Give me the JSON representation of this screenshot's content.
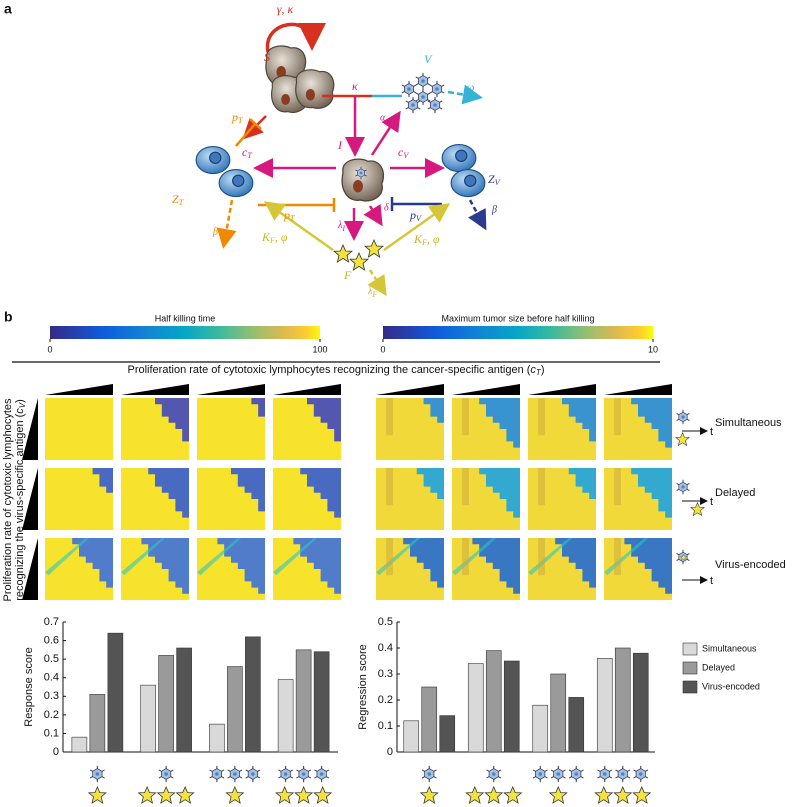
{
  "panel_labels": [
    "a",
    "b"
  ],
  "diagram": {
    "S": "S",
    "self": "γ, κ",
    "V": "V",
    "omega": "ω",
    "kappa": "κ",
    "alpha": "α",
    "I": "I",
    "cT": {
      "text": "c",
      "sub": "T"
    },
    "cV": {
      "text": "c",
      "sub": "V"
    },
    "pT_top": {
      "text": "p",
      "sub": "T"
    },
    "pT": {
      "text": "p",
      "sub": "T"
    },
    "pV": {
      "text": "p",
      "sub": "V"
    },
    "ZT": {
      "text": "Z",
      "sub": "T"
    },
    "ZV": {
      "text": "Z",
      "sub": "V"
    },
    "beta_T": "β",
    "beta_V": "β",
    "delta": "δ",
    "lambdaI": {
      "text": "λ",
      "sub": "I"
    },
    "KF_left": {
      "text": "K",
      "sub": "F",
      "suffix": ", φ"
    },
    "KF_right": {
      "text": "K",
      "sub": "F",
      "suffix": ", φ"
    },
    "F": "F",
    "lambdaF": {
      "text": "λ",
      "sub": "F"
    }
  },
  "colorbars": [
    {
      "title": "Half killing time",
      "lim": [
        0,
        100
      ],
      "ticks": [
        0,
        100
      ]
    },
    {
      "title": "Maximum tumor size before half killing",
      "lim": [
        0,
        10
      ],
      "ticks": [
        0,
        10
      ]
    }
  ],
  "heatmap_labels": {
    "x_title": {
      "text": "Proliferation rate of cytotoxic lymphocytes recognizing the cancer-specific antigen (",
      "symbol": "c",
      "sub": "T",
      "close": ")"
    },
    "y_title": {
      "line1": "Proliferation rate of cytotoxic lymphocytes",
      "line2": "recognizing the virus-specific antigen (",
      "symbol": "c",
      "sub": "V",
      "close": ")"
    },
    "rows": [
      "Simultaneous",
      "Delayed",
      "Virus-encoded"
    ],
    "time": "t"
  },
  "chart_data": [
    {
      "type": "bar",
      "y_label": "Response score",
      "categories": [
        null,
        null,
        null,
        null
      ],
      "series": [
        {
          "color": "#d9d9d9",
          "values": [
            0.08,
            0.36,
            0.15,
            0.39
          ]
        },
        {
          "color": "#9a9a9a",
          "values": [
            0.31,
            0.52,
            0.46,
            0.55
          ]
        },
        {
          "color": "#545454",
          "values": [
            0.64,
            0.56,
            0.62,
            0.54
          ]
        }
      ],
      "ylim": [
        0,
        0.7
      ],
      "yticks": [
        0,
        0.1,
        0.2,
        0.3,
        0.4,
        0.5,
        0.6,
        0.7
      ]
    },
    {
      "type": "bar",
      "y_label": "Regression score",
      "categories": [
        null,
        null,
        null,
        null
      ],
      "series": [
        {
          "name": "Simultaneous",
          "color": "#d9d9d9",
          "values": [
            0.12,
            0.34,
            0.18,
            0.36
          ]
        },
        {
          "name": "Delayed",
          "color": "#9a9a9a",
          "values": [
            0.25,
            0.39,
            0.3,
            0.4
          ]
        },
        {
          "name": "Virus-encoded",
          "color": "#545454",
          "values": [
            0.14,
            0.35,
            0.21,
            0.38
          ]
        }
      ],
      "ylim": [
        0,
        0.5
      ],
      "yticks": [
        0,
        0.1,
        0.2,
        0.3,
        0.4,
        0.5
      ],
      "legend": "right"
    }
  ]
}
